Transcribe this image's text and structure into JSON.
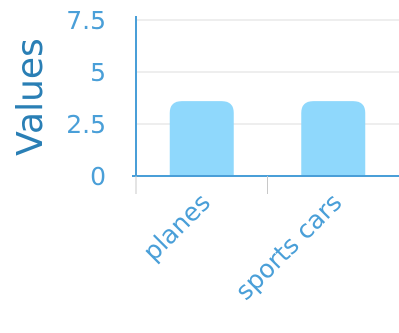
{
  "chart_data": {
    "type": "bar",
    "categories": [
      "planes",
      "sports cars"
    ],
    "values": [
      3.6,
      3.6
    ],
    "xlabel": "",
    "ylabel": "Values",
    "ylim": [
      0,
      7.5
    ],
    "yticks": [
      "0",
      "2.5",
      "5",
      "7.5"
    ],
    "ytick_values": [
      0,
      2.5,
      5,
      7.5
    ],
    "grid": true,
    "colors": {
      "bar": "#8fd8fc",
      "axis": "#4a9fd8",
      "grid": "#dcdcdc",
      "text": "#4a9fd8",
      "title": "#2a7fb5"
    }
  }
}
